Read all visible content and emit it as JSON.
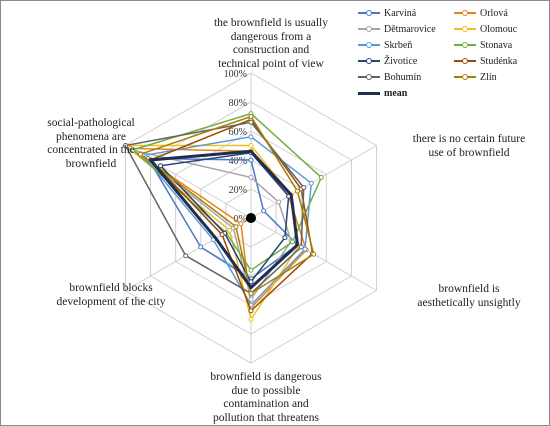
{
  "chart_data": {
    "type": "radar",
    "axes": [
      "the brownfield is usually dangerous from a construction and technical point of view",
      "there is no certain future use of brownfield",
      "brownfield is aesthetically unsightly",
      "brownfield is dangerous due to possible contamination and pollution that threatens",
      "brownfield blocks development of the city",
      "social-pathological phenomena are concentrated in the brownfield"
    ],
    "axis_label_lines": [
      [
        "the brownfield is usually",
        "dangerous from a",
        "construction and",
        "technical point of view"
      ],
      [
        "there is no certain future",
        "use of brownfield"
      ],
      [
        "brownfield is",
        "aesthetically unsightly"
      ],
      [
        "brownfield is dangerous",
        "due to possible",
        "contamination and",
        "pollution that threatens"
      ],
      [
        "brownfield blocks",
        "development of the city"
      ],
      [
        "social-pathological",
        "phenomena are",
        "concentrated in the",
        "brownfield"
      ]
    ],
    "rlim": [
      0,
      100
    ],
    "ticks": [
      "0%",
      "20%",
      "40%",
      "60%",
      "80%",
      "100%"
    ],
    "tick_values": [
      0,
      20,
      40,
      60,
      80,
      100
    ],
    "grid": true,
    "legend_position": "top-right",
    "series": [
      {
        "name": "Karviná",
        "color": "#4a78c4",
        "values": [
          40,
          10,
          37,
          42,
          40,
          82
        ]
      },
      {
        "name": "Orlová",
        "color": "#e8821e",
        "values": [
          46,
          30,
          44,
          62,
          8,
          96
        ]
      },
      {
        "name": "Dětmarovice",
        "color": "#a5a5a5",
        "values": [
          28,
          22,
          32,
          56,
          14,
          93
        ]
      },
      {
        "name": "Olomouc",
        "color": "#f0c020",
        "values": [
          50,
          32,
          38,
          70,
          17,
          100
        ]
      },
      {
        "name": "Skrbeň",
        "color": "#5b9bd5",
        "values": [
          56,
          48,
          43,
          60,
          30,
          86
        ]
      },
      {
        "name": "Stonava",
        "color": "#70ad47",
        "values": [
          72,
          56,
          33,
          36,
          20,
          94
        ]
      },
      {
        "name": "Životice",
        "color": "#264478",
        "values": [
          45,
          30,
          27,
          44,
          21,
          72
        ]
      },
      {
        "name": "Studénka",
        "color": "#9e4a00",
        "values": [
          68,
          40,
          49,
          64,
          23,
          80
        ]
      },
      {
        "name": "Bohumín",
        "color": "#636363",
        "values": [
          66,
          42,
          40,
          52,
          52,
          100
        ]
      },
      {
        "name": "Zlín",
        "color": "#a67f00",
        "values": [
          70,
          37,
          50,
          52,
          12,
          88
        ]
      }
    ],
    "mean": {
      "name": "mean",
      "color": "#1f2d4e",
      "values": [
        46,
        32,
        37,
        48,
        28,
        80
      ]
    }
  }
}
